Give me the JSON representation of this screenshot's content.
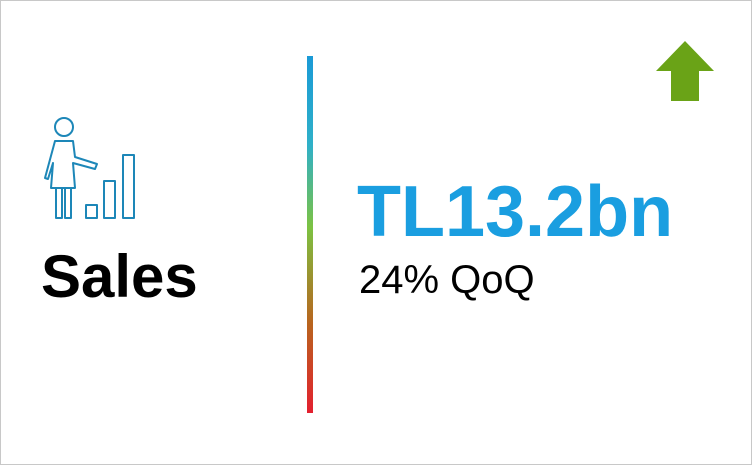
{
  "card": {
    "title": "Sales",
    "value": "TL13.2bn",
    "change": "24% QoQ",
    "trend": "up"
  },
  "icons": {
    "metric_icon": "person-presenting-bar-chart-icon",
    "trend_icon": "up-arrow-icon"
  },
  "colors": {
    "value_text": "#1a9ee0",
    "trend_arrow": "#6aa317",
    "icon_stroke": "#1d87b8",
    "divider_gradient": [
      "#1a9ad6",
      "#7cc242",
      "#e3202f"
    ]
  }
}
